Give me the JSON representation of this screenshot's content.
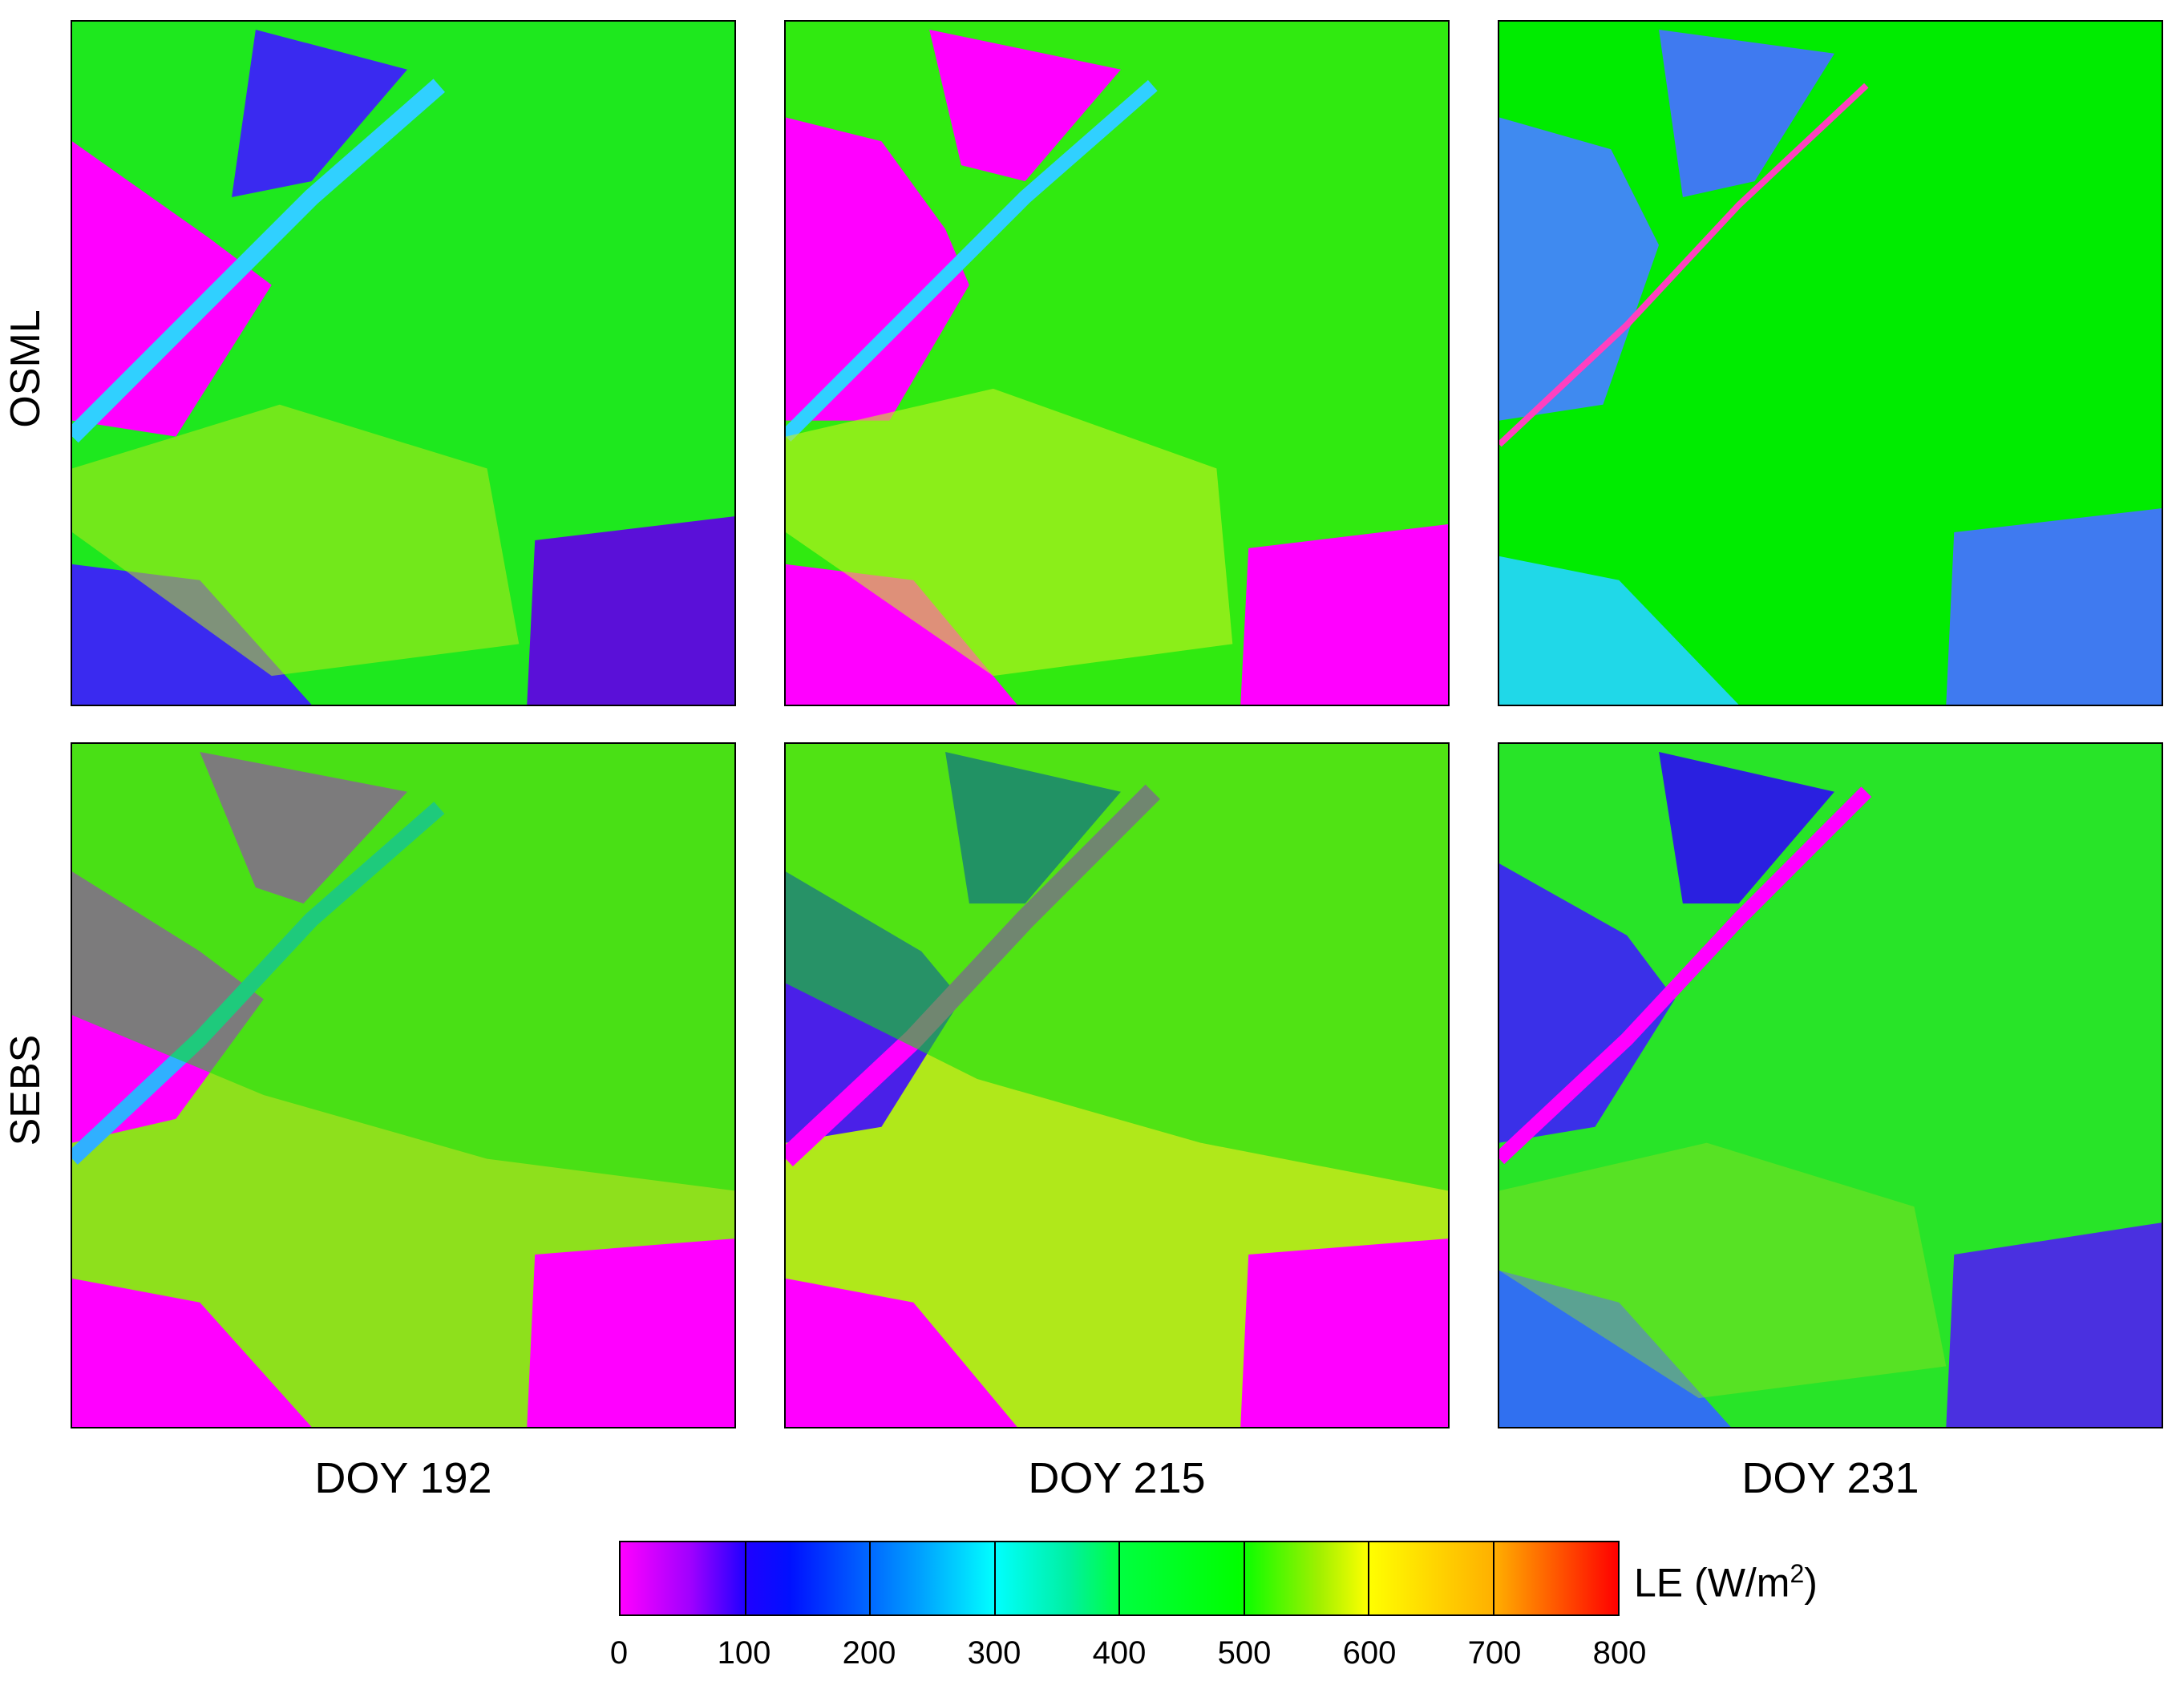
{
  "figure": {
    "rows": [
      {
        "label": "OSML",
        "panels": [
          {
            "column": "DOY 192",
            "base": "#1ee81e",
            "patches": [
              "#ff00ff",
              "#3a2af0",
              "#ff00ff",
              "#3a10e0"
            ]
          },
          {
            "column": "DOY 215",
            "base": "#30ea10",
            "patches": [
              "#ff00ff",
              "#ff00ff",
              "#ff00ff",
              "#ff00ff"
            ]
          },
          {
            "column": "DOY 231",
            "base": "#00ec00",
            "patches": [
              "#3f8af0",
              "#2f6ae8",
              "#20d8e8",
              "#3f7af0"
            ]
          }
        ]
      },
      {
        "label": "SEBS",
        "panels": [
          {
            "column": "DOY 192",
            "base": "#8ee01c",
            "patches": [
              "#ff00ff",
              "#2a20f0",
              "#ff00ff",
              "#ff00ff"
            ]
          },
          {
            "column": "DOY 215",
            "base": "#b0e81a",
            "patches": [
              "#4a20e8",
              "#3a20e0",
              "#ff00ff",
              "#ff00ff"
            ]
          },
          {
            "column": "DOY 231",
            "base": "#28e428",
            "patches": [
              "#3a30e8",
              "#2a20e0",
              "#3070f0",
              "#4a30e0"
            ]
          }
        ]
      }
    ],
    "columns": [
      "DOY 192",
      "DOY 215",
      "DOY 231"
    ]
  },
  "colorbar": {
    "title_main": "LE (W/m",
    "title_sup": "2",
    "title_end": ")",
    "min": 0,
    "max": 800,
    "ticks": [
      "0",
      "100",
      "200",
      "300",
      "400",
      "500",
      "600",
      "700",
      "800"
    ],
    "colors": [
      "#ff00ff",
      "#2000ff",
      "#00ffff",
      "#00ff00",
      "#ffff00",
      "#ff0000"
    ]
  }
}
